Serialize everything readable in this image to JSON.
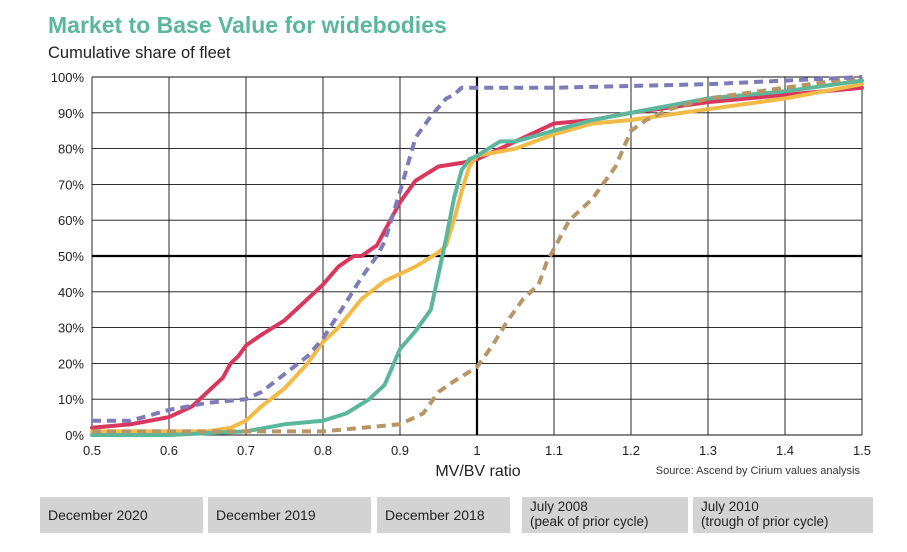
{
  "chart_data": {
    "type": "line",
    "title": "Market to Base Value for widebodies",
    "subtitle": "Cumulative share of fleet",
    "xlabel": "MV/BV ratio",
    "ylabel": "",
    "xlim": [
      0.5,
      1.5
    ],
    "ylim": [
      0,
      100
    ],
    "x_ticks": [
      "0.5",
      "0.6",
      "0.7",
      "0.8",
      "0.9",
      "1",
      "1.1",
      "1.2",
      "1.3",
      "1.4",
      "1.5"
    ],
    "y_ticks": [
      "0%",
      "10%",
      "20%",
      "30%",
      "40%",
      "50%",
      "60%",
      "70%",
      "80%",
      "90%",
      "100%"
    ],
    "grid": true,
    "reference_lines": {
      "x": 1.0,
      "y": 50
    },
    "source": "Source: Ascend by Cirium values analysis",
    "series": [
      {
        "name": "December 2020",
        "color": "#d9385e",
        "dashed": false,
        "x": [
          0.5,
          0.55,
          0.6,
          0.63,
          0.65,
          0.67,
          0.68,
          0.69,
          0.7,
          0.72,
          0.75,
          0.77,
          0.8,
          0.82,
          0.84,
          0.85,
          0.87,
          0.88,
          0.9,
          0.92,
          0.95,
          0.98,
          1.0,
          1.05,
          1.1,
          1.15,
          1.2,
          1.3,
          1.4,
          1.5
        ],
        "y": [
          2,
          3,
          5,
          8,
          12,
          16,
          20,
          22,
          25,
          28,
          32,
          36,
          42,
          47,
          50,
          50,
          53,
          57,
          65,
          71,
          75,
          76,
          77,
          82,
          87,
          88,
          90,
          93,
          95,
          97
        ]
      },
      {
        "name": "December 2019",
        "color": "#f2bb48",
        "dashed": false,
        "x": [
          0.5,
          0.6,
          0.65,
          0.68,
          0.7,
          0.72,
          0.75,
          0.78,
          0.8,
          0.82,
          0.85,
          0.88,
          0.9,
          0.92,
          0.95,
          0.96,
          0.97,
          0.98,
          0.99,
          1.0,
          1.05,
          1.1,
          1.15,
          1.2,
          1.3,
          1.4,
          1.5
        ],
        "y": [
          1,
          1,
          1,
          2,
          4,
          8,
          13,
          20,
          26,
          30,
          38,
          43,
          45,
          47,
          51,
          53,
          60,
          68,
          75,
          78,
          80,
          84,
          87,
          88,
          91,
          94,
          98
        ]
      },
      {
        "name": "December 2018",
        "color": "#5bb79c",
        "dashed": false,
        "x": [
          0.5,
          0.6,
          0.7,
          0.75,
          0.8,
          0.83,
          0.86,
          0.88,
          0.9,
          0.92,
          0.94,
          0.95,
          0.96,
          0.97,
          0.98,
          0.99,
          1.0,
          1.03,
          1.05,
          1.1,
          1.15,
          1.2,
          1.3,
          1.4,
          1.5
        ],
        "y": [
          0,
          0,
          1,
          3,
          4,
          6,
          10,
          14,
          24,
          29,
          35,
          45,
          55,
          66,
          74,
          77,
          78,
          82,
          82,
          85,
          88,
          90,
          94,
          96,
          99
        ]
      },
      {
        "name": "July 2008\n(peak of prior cycle)",
        "color": "#b89565",
        "dashed": true,
        "x": [
          0.5,
          0.6,
          0.7,
          0.8,
          0.85,
          0.9,
          0.93,
          0.95,
          0.97,
          1.0,
          1.02,
          1.04,
          1.06,
          1.08,
          1.09,
          1.1,
          1.12,
          1.15,
          1.18,
          1.2,
          1.22,
          1.25,
          1.3,
          1.4,
          1.5
        ],
        "y": [
          1,
          1,
          1,
          1,
          2,
          3,
          6,
          12,
          15,
          19,
          25,
          32,
          38,
          42,
          48,
          52,
          60,
          66,
          75,
          85,
          88,
          91,
          94,
          97,
          100
        ]
      },
      {
        "name": "July 2010\n(trough of prior cycle)",
        "color": "#7e7bb8",
        "dashed": true,
        "x": [
          0.5,
          0.55,
          0.6,
          0.65,
          0.7,
          0.72,
          0.75,
          0.78,
          0.8,
          0.83,
          0.85,
          0.87,
          0.88,
          0.9,
          0.92,
          0.94,
          0.96,
          0.97,
          0.98,
          0.99,
          1.1,
          1.3,
          1.5
        ],
        "y": [
          4,
          4,
          7,
          9,
          10,
          12,
          17,
          22,
          27,
          37,
          44,
          50,
          54,
          68,
          83,
          89,
          94,
          95,
          97,
          97,
          97,
          98,
          100
        ]
      }
    ]
  },
  "legend": {
    "dec2020": "December 2020",
    "dec2019": "December 2019",
    "dec2018": "December 2018",
    "jul2008_line1": "July 2008",
    "jul2008_line2": "(peak of prior cycle)",
    "jul2010_line1": "July 2010",
    "jul2010_line2": "(trough of prior cycle)"
  }
}
